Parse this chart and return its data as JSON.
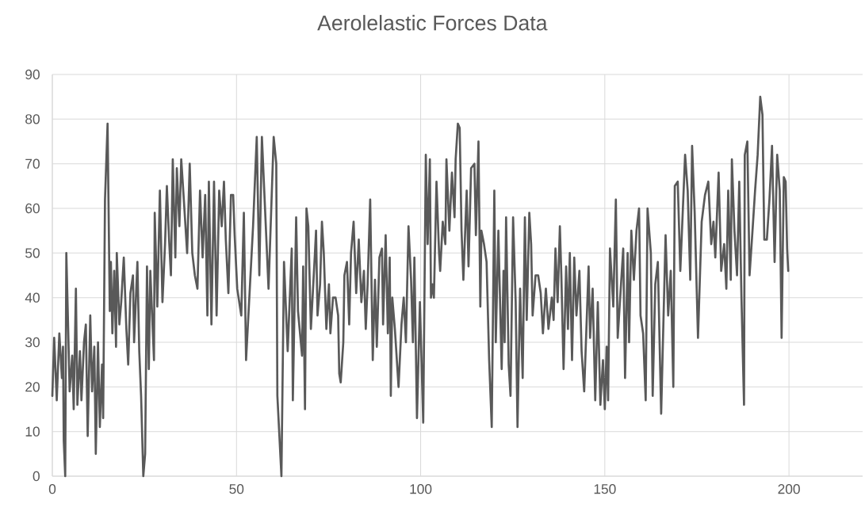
{
  "chart_data": {
    "type": "line",
    "title": "Aerolelastic Forces Data",
    "xlim": [
      0,
      220
    ],
    "xticks": [
      0,
      50,
      100,
      150,
      200
    ],
    "ylim": [
      0,
      90
    ],
    "yticks": [
      0,
      10,
      20,
      30,
      40,
      50,
      60,
      70,
      80,
      90
    ],
    "grid": true,
    "marker": "none",
    "line_style": "solid",
    "series": [
      {
        "color": "#595959",
        "x": [
          0,
          0.5,
          1.2,
          1.9,
          2.6,
          2.9,
          3.1,
          3.5,
          3.8,
          4.3,
          4.7,
          5.4,
          5.8,
          6.4,
          6.8,
          7.5,
          7.9,
          8.6,
          9.1,
          9.6,
          10.3,
          10.8,
          11.4,
          11.8,
          12.4,
          12.9,
          13.5,
          13.8,
          14.3,
          15,
          15.6,
          15.9,
          16.3,
          16.8,
          17.3,
          17.5,
          18.2,
          18.7,
          19.4,
          20.1,
          20.6,
          21.2,
          21.9,
          22.2,
          23.1,
          23.6,
          24.1,
          24.7,
          25.2,
          25.7,
          26.2,
          26.6,
          27.1,
          27.6,
          27.8,
          28.5,
          29.2,
          29.9,
          30.6,
          31.1,
          31.7,
          32.2,
          32.7,
          33.4,
          33.8,
          34.5,
          35,
          35.7,
          36.6,
          37.3,
          38,
          38.7,
          39.4,
          40.1,
          40.8,
          41.5,
          42.1,
          42.5,
          43.2,
          43.9,
          44.6,
          45.3,
          46,
          46.6,
          47.1,
          47.8,
          48.5,
          49.1,
          49.5,
          50.2,
          51.3,
          52,
          52.6,
          54.5,
          55.5,
          56.2,
          56.9,
          58.7,
          60.1,
          60.8,
          61.1,
          62.2,
          62.9,
          63.9,
          65,
          65.3,
          66.2,
          66.7,
          67.8,
          68.1,
          68.6,
          69,
          69.5,
          70.2,
          71.3,
          71.6,
          72,
          72.7,
          73.2,
          73.7,
          74.4,
          75.1,
          75.5,
          76.2,
          76.9,
          77.6,
          77.9,
          78.3,
          79,
          79.3,
          80,
          80.6,
          81.1,
          81.8,
          82.5,
          83.2,
          83.9,
          84.6,
          85.1,
          85.6,
          86.3,
          87,
          87.6,
          88.1,
          88.8,
          89.5,
          89.8,
          90.5,
          91.1,
          91.6,
          91.9,
          92.3,
          93,
          94,
          94.8,
          95.4,
          96,
          96.7,
          97.4,
          97.9,
          98.3,
          99,
          99.8,
          100.7,
          101.4,
          101.9,
          102.5,
          102.8,
          103.2,
          103.6,
          104.3,
          105,
          105.3,
          106,
          106.7,
          107,
          107.8,
          108.5,
          109.2,
          109.5,
          110.1,
          110.6,
          111.1,
          111.6,
          112.5,
          113,
          113.7,
          114.6,
          115,
          115.7,
          116.2,
          116.5,
          117.2,
          117.9,
          118.6,
          119.3,
          120,
          120.4,
          121.1,
          122,
          122.5,
          122.8,
          123.2,
          123.9,
          124.4,
          125.1,
          125.8,
          126.3,
          127,
          127.7,
          128.3,
          128.8,
          129.5,
          130,
          130.4,
          131.2,
          131.9,
          132.6,
          133.2,
          134,
          134.7,
          135.6,
          136.1,
          136.6,
          137.2,
          137.8,
          138.2,
          138.8,
          139.5,
          140,
          140.5,
          141.1,
          141.7,
          142.3,
          143.1,
          143.7,
          144.4,
          145.6,
          146,
          146.7,
          147.4,
          148.1,
          148.8,
          149.5,
          150,
          150.5,
          150.9,
          151.4,
          152.3,
          153,
          153.5,
          155,
          155.5,
          156.2,
          156.6,
          157.2,
          157.9,
          158.6,
          159.3,
          159.7,
          160.4,
          161.1,
          161.6,
          162.5,
          163,
          163.7,
          164.4,
          165.3,
          166.5,
          167.2,
          167.9,
          168.6,
          169,
          169.8,
          170.5,
          171.2,
          171.8,
          172.5,
          173.2,
          173.7,
          174.4,
          175.3,
          176.3,
          177.2,
          178.1,
          178.9,
          179.5,
          180,
          180.9,
          181.6,
          182.4,
          183,
          183.5,
          184.2,
          184.5,
          185.2,
          185.9,
          186.5,
          187.1,
          187.8,
          188,
          188.7,
          189.3,
          190.1,
          190.8,
          191.5,
          192.2,
          192.8,
          193.3,
          194,
          194.7,
          195.4,
          196.1,
          196.8,
          197.5,
          198,
          198.6,
          199.1,
          199.5,
          199.8
        ],
        "values": [
          18,
          31,
          17,
          32,
          22,
          29,
          8,
          0,
          50,
          33,
          19,
          27,
          15,
          42,
          16,
          28,
          17,
          30,
          34,
          9,
          36,
          19,
          29,
          5,
          30,
          11,
          25,
          13,
          62,
          79,
          37,
          48,
          32,
          46,
          29,
          50,
          34,
          39,
          49,
          33,
          25,
          41,
          45,
          30,
          48,
          28,
          18,
          0,
          5,
          47,
          24,
          46,
          36,
          26,
          59,
          38,
          64,
          39,
          52,
          65,
          53,
          45,
          71,
          49,
          69,
          56,
          71,
          62,
          50,
          70,
          50,
          45,
          42,
          64,
          49,
          63,
          36,
          66,
          34,
          66,
          36,
          64,
          56,
          66,
          53,
          41,
          63,
          63,
          54,
          42,
          36,
          59,
          26,
          56,
          76,
          45,
          76,
          42,
          76,
          70,
          18,
          0,
          48,
          28,
          51,
          17,
          58,
          37,
          27,
          47,
          15,
          60,
          56,
          33,
          50,
          55,
          36,
          43,
          57,
          50,
          33,
          43,
          32,
          40,
          40,
          36,
          23,
          21,
          30,
          45,
          48,
          34,
          50,
          57,
          41,
          53,
          39,
          46,
          33,
          43,
          62,
          26,
          44,
          29,
          49,
          51,
          34,
          54,
          32,
          49,
          18,
          40,
          33,
          20,
          34,
          40,
          30,
          56,
          44,
          30,
          49,
          13,
          39,
          12,
          72,
          52,
          71,
          40,
          43,
          40,
          66,
          50,
          46,
          57,
          52,
          71,
          55,
          68,
          58,
          71,
          79,
          78,
          55,
          44,
          64,
          47,
          69,
          70,
          54,
          75,
          38,
          55,
          52,
          48,
          26,
          11,
          64,
          30,
          55,
          24,
          46,
          30,
          58,
          25,
          18,
          58,
          39,
          11,
          42,
          22,
          58,
          35,
          59,
          52,
          36,
          45,
          45,
          41,
          32,
          42,
          33,
          40,
          35,
          51,
          39,
          56,
          45,
          24,
          47,
          33,
          50,
          26,
          49,
          36,
          46,
          28,
          19,
          47,
          31,
          42,
          17,
          39,
          16,
          26,
          15,
          29,
          17,
          51,
          38,
          62,
          31,
          51,
          22,
          50,
          30,
          55,
          44,
          55,
          60,
          36,
          32,
          17,
          60,
          50,
          18,
          43,
          48,
          14,
          54,
          36,
          46,
          20,
          65,
          66,
          46,
          60,
          72,
          64,
          44,
          74,
          59,
          31,
          57,
          63,
          66,
          52,
          57,
          49,
          68,
          46,
          52,
          42,
          64,
          44,
          71,
          55,
          45,
          66,
          40,
          16,
          72,
          75,
          45,
          55,
          64,
          72,
          85,
          81,
          53,
          53,
          62,
          74,
          48,
          72,
          64,
          31,
          67,
          66,
          51,
          46
        ]
      }
    ]
  }
}
